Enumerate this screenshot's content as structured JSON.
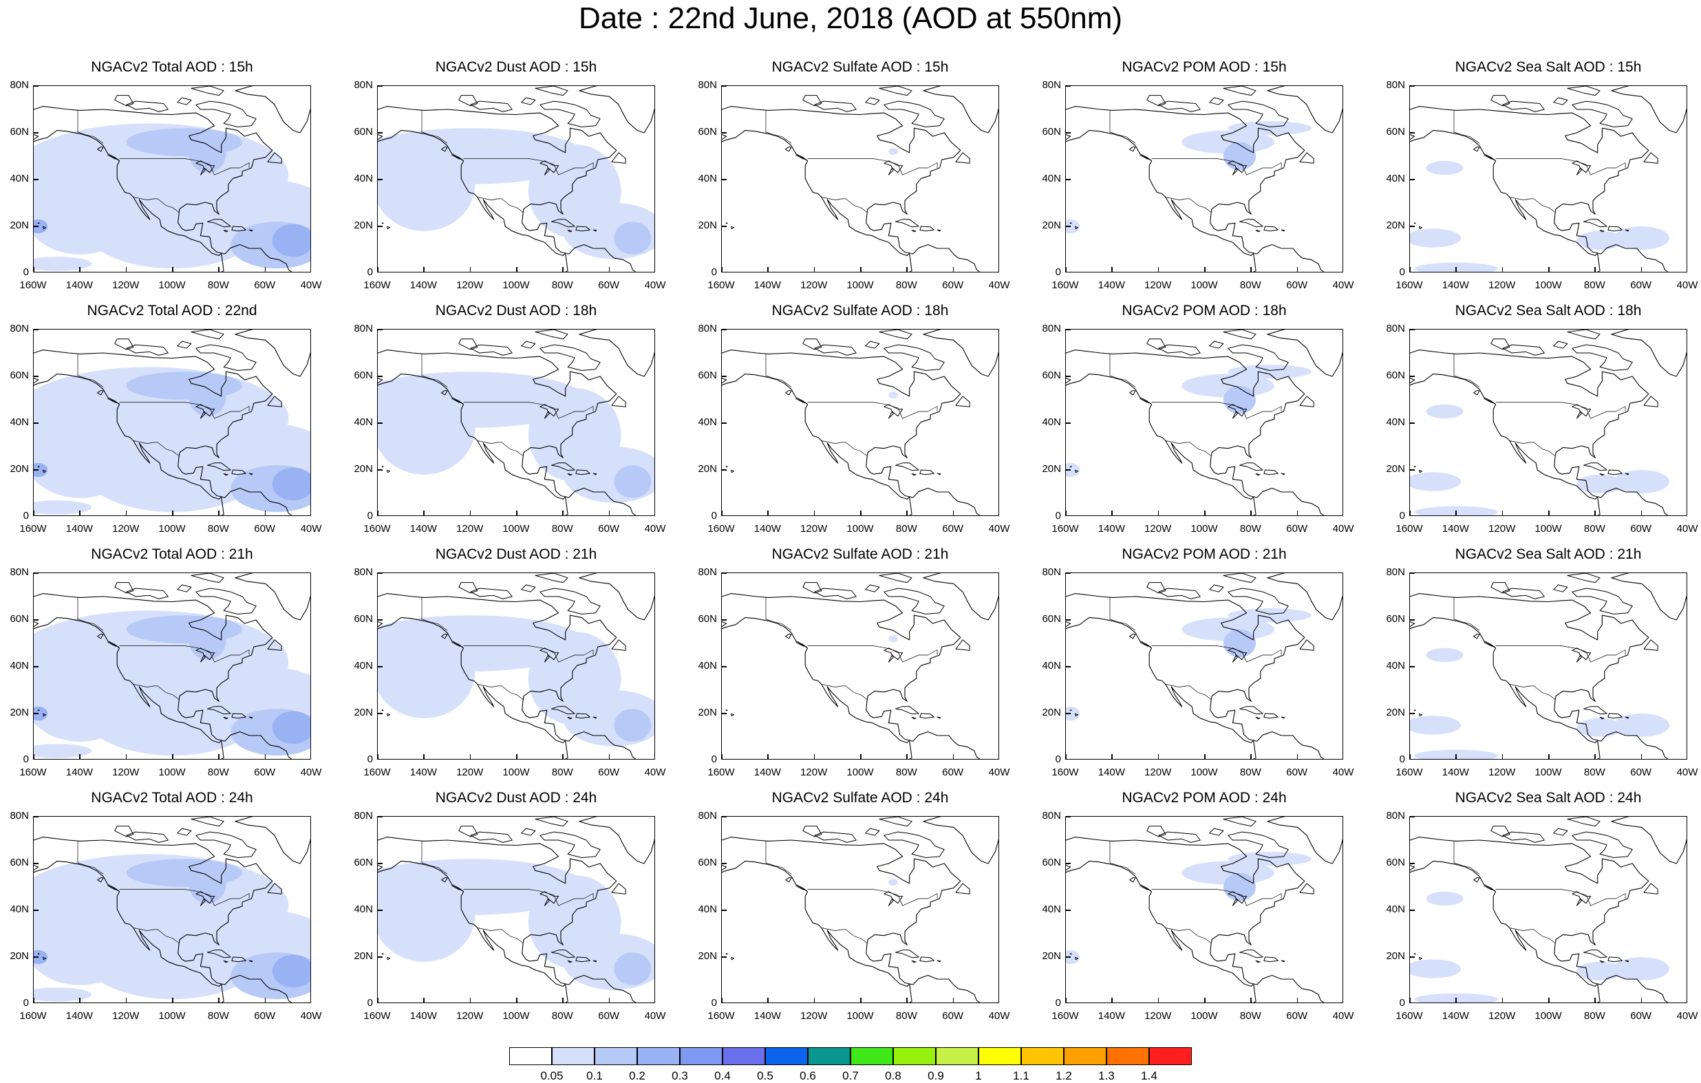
{
  "title": "Date : 22nd June, 2018 (AOD at 550nm)",
  "axes": {
    "x_ticks": [
      "160W",
      "140W",
      "120W",
      "100W",
      "80W",
      "60W",
      "40W"
    ],
    "y_ticks": [
      "80N",
      "60N",
      "40N",
      "20N",
      "0"
    ],
    "lon_range": [
      -160,
      -40
    ],
    "lat_range": [
      0,
      80
    ]
  },
  "panels": [
    {
      "title": "NGACv2 Total AOD : 15h",
      "type": "total"
    },
    {
      "title": "NGACv2 Dust AOD : 15h",
      "type": "dust"
    },
    {
      "title": "NGACv2 Sulfate AOD : 15h",
      "type": "sulfate"
    },
    {
      "title": "NGACv2 POM AOD : 15h",
      "type": "pom"
    },
    {
      "title": "NGACv2 Sea Salt AOD : 15h",
      "type": "seasalt"
    },
    {
      "title": "NGACv2 Total AOD : 22nd",
      "type": "total"
    },
    {
      "title": "NGACv2 Dust AOD : 18h",
      "type": "dust"
    },
    {
      "title": "NGACv2 Sulfate AOD : 18h",
      "type": "sulfate"
    },
    {
      "title": "NGACv2 POM AOD : 18h",
      "type": "pom"
    },
    {
      "title": "NGACv2 Sea Salt AOD : 18h",
      "type": "seasalt"
    },
    {
      "title": "NGACv2 Total AOD : 21h",
      "type": "total"
    },
    {
      "title": "NGACv2 Dust AOD : 21h",
      "type": "dust"
    },
    {
      "title": "NGACv2 Sulfate AOD : 21h",
      "type": "sulfate"
    },
    {
      "title": "NGACv2 POM AOD : 21h",
      "type": "pom"
    },
    {
      "title": "NGACv2 Sea Salt AOD : 21h",
      "type": "seasalt"
    },
    {
      "title": "NGACv2 Total AOD : 24h",
      "type": "total"
    },
    {
      "title": "NGACv2 Dust AOD : 24h",
      "type": "dust"
    },
    {
      "title": "NGACv2 Sulfate AOD : 24h",
      "type": "sulfate"
    },
    {
      "title": "NGACv2 POM AOD : 24h",
      "type": "pom"
    },
    {
      "title": "NGACv2 Sea Salt  AOD : 24h",
      "type": "seasalt"
    }
  ],
  "legend": {
    "colors": [
      "#ffffff",
      "#d6e0fb",
      "#b7c9f7",
      "#99b2f3",
      "#7f98f0",
      "#6a6fec",
      "#0b63ee",
      "#08968f",
      "#40e81a",
      "#98f00e",
      "#c6f046",
      "#ffff00",
      "#ffc300",
      "#ff9f00",
      "#ff7100",
      "#ff1f1f"
    ],
    "labels": [
      "0.05",
      "0.1",
      "0.2",
      "0.3",
      "0.4",
      "0.5",
      "0.6",
      "0.7",
      "0.8",
      "0.9",
      "1",
      "1.1",
      "1.2",
      "1.3",
      "1.4"
    ]
  }
}
